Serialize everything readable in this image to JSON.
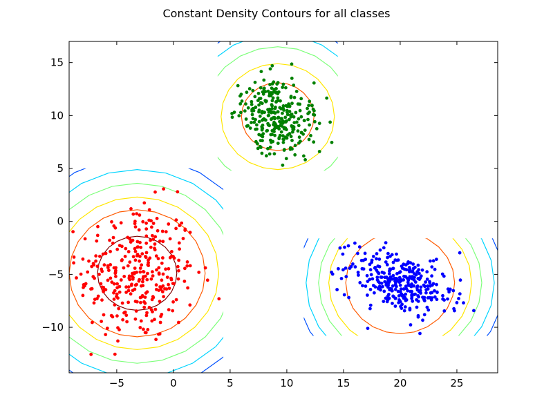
{
  "chart_data": {
    "type": "scatter",
    "title": "Constant Density Contours for all classes",
    "xlabel": "",
    "ylabel": "",
    "xlim": [
      -9.2,
      28.6
    ],
    "ylim": [
      -14.3,
      17
    ],
    "xticks": [
      -5,
      0,
      5,
      10,
      15,
      20,
      25
    ],
    "yticks": [
      -10,
      -5,
      0,
      5,
      10,
      15
    ],
    "xtick_labels": [
      "−5",
      "0",
      "5",
      "10",
      "15",
      "20",
      "25"
    ],
    "ytick_labels": [
      "−10",
      "−5",
      "0",
      "5",
      "10",
      "15"
    ],
    "grid": false,
    "legend": "none",
    "contour_colors": [
      "#000080",
      "#0050ff",
      "#00d4ff",
      "#7dff7a",
      "#ffe600",
      "#ff5a00",
      "#800000"
    ],
    "classes": [
      {
        "color": "#ff0000",
        "center": [
          -3.2,
          -4.9
        ],
        "spread": [
          2.6,
          3.3
        ],
        "rotation_deg": 0,
        "n_points": 320,
        "point_range": [
          [
            -9.0,
            4.4
          ],
          [
            -13.9,
            5.1
          ]
        ],
        "grid_box": [
          [
            -9.2,
            4.4
          ],
          [
            -14.3,
            5.0
          ]
        ],
        "contour_radii": [
          3.5,
          6.0,
          7.2,
          8.5,
          9.8,
          11.0
        ],
        "contour_levels": [
          6,
          5,
          4,
          3,
          2,
          1
        ]
      },
      {
        "color": "#008000",
        "center": [
          9.2,
          9.9
        ],
        "spread": [
          1.5,
          1.8
        ],
        "rotation_deg": 48,
        "n_points": 300,
        "point_range": [
          [
            3.9,
            14.0
          ],
          [
            4.3,
            16.7
          ]
        ],
        "grid_box": [
          [
            3.9,
            14.5
          ],
          [
            4.8,
            17.0
          ]
        ],
        "contour_radii": [
          3.2,
          5.0,
          6.6,
          7.8,
          8.8
        ],
        "contour_levels": [
          5,
          4,
          3,
          2,
          1
        ]
      },
      {
        "color": "#0000ff",
        "center": [
          20.0,
          -5.8
        ],
        "spread": [
          2.4,
          1.3
        ],
        "rotation_deg": -20,
        "n_points": 320,
        "point_range": [
          [
            11.6,
            28.5
          ],
          [
            -10.8,
            -1.6
          ]
        ],
        "grid_box": [
          [
            11.5,
            28.6
          ],
          [
            -10.8,
            -1.6
          ]
        ],
        "contour_radii": [
          4.8,
          6.3,
          7.2,
          8.3,
          9.2
        ],
        "contour_levels": [
          5,
          4,
          3,
          2,
          1
        ]
      }
    ]
  }
}
